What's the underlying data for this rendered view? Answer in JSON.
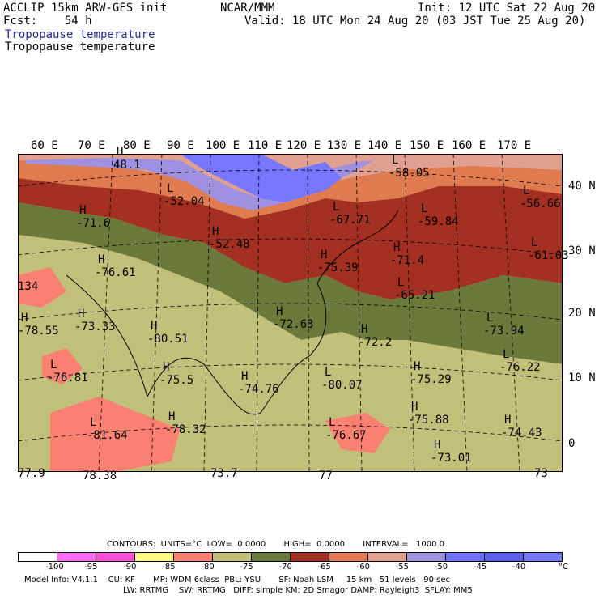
{
  "header": {
    "title": "ACCLIP 15km ARW-GFS init",
    "forecast": "Fcst:    54 h",
    "org": "NCAR/MMM",
    "init": "Init: 12 UTC Sat 22 Aug 20",
    "valid": "Valid: 18 UTC Mon 24 Aug 20 (03 JST Tue 25 Aug 20)",
    "field_blue": "Tropopause temperature",
    "field_black": "Tropopause temperature"
  },
  "longitudes": [
    "60 E",
    "70 E",
    "80 E",
    "90 E",
    "100 E",
    "110 E",
    "120 E",
    "130 E",
    "140 E",
    "150 E",
    "160 E",
    "170 E"
  ],
  "latitudes": [
    "40 N",
    "30 N",
    "20 N",
    "10 N",
    "0"
  ],
  "map_labels": [
    {
      "hl": "H",
      "val": "48.1"
    },
    {
      "hl": "L",
      "val": "-52.04"
    },
    {
      "hl": "L",
      "val": "-58.05"
    },
    {
      "hl": "L",
      "val": "-56.66"
    },
    {
      "hl": "H",
      "val": "-71.6"
    },
    {
      "hl": "H",
      "val": "-52.48"
    },
    {
      "hl": "L",
      "val": "-67.71"
    },
    {
      "hl": "L",
      "val": "-59.84"
    },
    {
      "hl": "H",
      "val": "-76.61"
    },
    {
      "hl": "H",
      "val": "-75.39"
    },
    {
      "hl": "H",
      "val": "-71.4"
    },
    {
      "hl": "L",
      "val": "-61.03"
    },
    {
      "hl": "H",
      "val": "-73.33"
    },
    {
      "hl": "H",
      "val": "-78.55"
    },
    {
      "hl": "H",
      "val": "-80.51"
    },
    {
      "hl": "H",
      "val": "-72.63"
    },
    {
      "hl": "L",
      "val": "-65.21"
    },
    {
      "hl": "L",
      "val": "-73.94"
    },
    {
      "hl": "H",
      "val": "-72.2"
    },
    {
      "hl": "L",
      "val": "-76.22"
    },
    {
      "hl": "L",
      "val": "-76.81"
    },
    {
      "hl": "H",
      "val": "-75.5"
    },
    {
      "hl": "H",
      "val": "-74.76"
    },
    {
      "hl": "L",
      "val": "-80.07"
    },
    {
      "hl": "H",
      "val": "-75.29"
    },
    {
      "hl": "L",
      "val": "-81.64"
    },
    {
      "hl": "H",
      "val": "-78.32"
    },
    {
      "hl": "L",
      "val": "-76.67"
    },
    {
      "hl": "H",
      "val": "-75.88"
    },
    {
      "hl": "H",
      "val": "-74.43"
    },
    {
      "hl": "H",
      "val": "-73.01"
    },
    {
      "hl": "",
      "val": "134"
    },
    {
      "hl": "",
      "val": "77.9"
    },
    {
      "hl": "",
      "val": "78.38"
    },
    {
      "hl": "",
      "val": "73.7"
    },
    {
      "hl": "",
      "val": "77"
    },
    {
      "hl": "",
      "val": "73"
    }
  ],
  "contours_line": "CONTOURS:  UNITS=°C  LOW=  0.0000       HIGH=  0.0000       INTERVAL=   1000.0",
  "colorbar": {
    "colors": [
      "#ffffff",
      "#ff6ef5",
      "#ff4fd6",
      "#ffff80",
      "#fa8072",
      "#c0c07a",
      "#6b7a3a",
      "#a33020",
      "#e07b50",
      "#e0a090",
      "#a090e0",
      "#7070ff",
      "#6060f0",
      "#7777ff"
    ],
    "ticks": [
      "-100",
      "-95",
      "-90",
      "-85",
      "-80",
      "-75",
      "-70",
      "-65",
      "-60",
      "-55",
      "-50",
      "-45",
      "-40"
    ],
    "unit": "°C"
  },
  "model_info": {
    "line1": "Model Info: V4.1.1    CU: KF       MP: WDM 6class  PBL: YSU       SF: Noah LSM     15 km   51 levels   90 sec",
    "line2": "LW: RRTMG    SW: RRTMG   DIFF: simple KM: 2D Smagor DAMP: Rayleigh3  SFLAY: MM5"
  }
}
